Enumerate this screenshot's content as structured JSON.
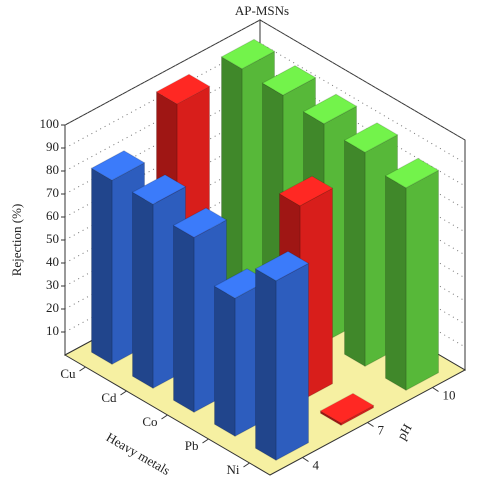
{
  "chart_data": {
    "type": "bar3d",
    "title": "AP-MSNs",
    "zlabel": "Rejection (%)",
    "xlabel": "Heavy metals",
    "depth_label": "pH",
    "categories": [
      "Cu",
      "Cd",
      "Co",
      "Pb",
      "Ni"
    ],
    "depth_categories": [
      "4",
      "7",
      "10"
    ],
    "series": [
      {
        "color": "#2f62c8",
        "values": [
          80,
          80,
          76,
          60,
          78
        ]
      },
      {
        "color": "#e3201c",
        "values": [
          98,
          1,
          1,
          85,
          1
        ]
      },
      {
        "color": "#5cc23c",
        "values": [
          98,
          97,
          95,
          93,
          88
        ]
      }
    ],
    "zlim": [
      0,
      100
    ],
    "zticks": [
      10,
      20,
      30,
      40,
      50,
      60,
      70,
      80,
      90,
      100
    ],
    "grid": true
  }
}
